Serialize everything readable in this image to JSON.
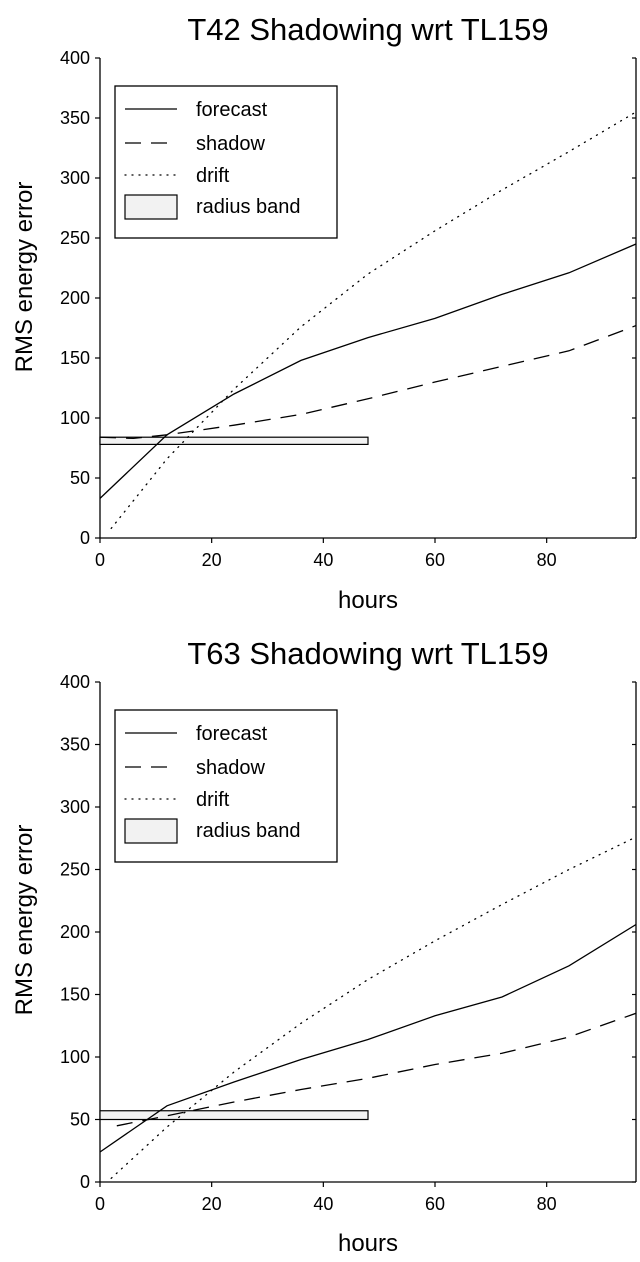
{
  "chart_data": [
    {
      "type": "line",
      "title": "T42 Shadowing wrt TL159",
      "xlabel": "hours",
      "ylabel": "RMS energy error",
      "xlim": [
        0,
        96
      ],
      "ylim": [
        0,
        400
      ],
      "xticks": [
        0,
        20,
        40,
        60,
        80
      ],
      "yticks": [
        0,
        50,
        100,
        150,
        200,
        250,
        300,
        350,
        400
      ],
      "legend_position": "top-left",
      "series": [
        {
          "name": "forecast",
          "style": "solid",
          "x": [
            0,
            12,
            24,
            36,
            48,
            60,
            72,
            84,
            96
          ],
          "y": [
            33,
            86,
            120,
            148,
            167,
            183,
            203,
            221,
            245
          ]
        },
        {
          "name": "shadow",
          "style": "dashed",
          "x": [
            0,
            6,
            12,
            24,
            36,
            48,
            60,
            72,
            84,
            96
          ],
          "y": [
            84,
            83,
            86,
            94,
            103,
            116,
            130,
            143,
            156,
            177
          ]
        },
        {
          "name": "drift",
          "style": "dotted",
          "x": [
            2,
            12,
            24,
            36,
            48,
            60,
            72,
            84,
            96
          ],
          "y": [
            8,
            66,
            124,
            176,
            220,
            256,
            290,
            322,
            355
          ]
        }
      ],
      "radius_band": {
        "name": "radius band",
        "x": [
          0,
          48
        ],
        "y": [
          78,
          84
        ]
      }
    },
    {
      "type": "line",
      "title": "T63 Shadowing wrt TL159",
      "xlabel": "hours",
      "ylabel": "RMS energy error",
      "xlim": [
        0,
        96
      ],
      "ylim": [
        0,
        400
      ],
      "xticks": [
        0,
        20,
        40,
        60,
        80
      ],
      "yticks": [
        0,
        50,
        100,
        150,
        200,
        250,
        300,
        350,
        400
      ],
      "legend_position": "top-left",
      "series": [
        {
          "name": "forecast",
          "style": "solid",
          "x": [
            0,
            12,
            24,
            36,
            48,
            60,
            72,
            84,
            96
          ],
          "y": [
            24,
            61,
            80,
            98,
            114,
            133,
            148,
            173,
            206
          ]
        },
        {
          "name": "shadow",
          "style": "dashed",
          "x": [
            3,
            12,
            24,
            36,
            48,
            60,
            72,
            84,
            96
          ],
          "y": [
            45,
            53,
            64,
            74,
            83,
            94,
            103,
            116,
            135
          ]
        },
        {
          "name": "drift",
          "style": "dotted",
          "x": [
            2,
            12,
            24,
            36,
            48,
            60,
            72,
            84,
            96
          ],
          "y": [
            3,
            44,
            88,
            127,
            162,
            193,
            222,
            250,
            276
          ]
        }
      ],
      "radius_band": {
        "name": "radius band",
        "x": [
          0,
          48
        ],
        "y": [
          50,
          57
        ]
      }
    }
  ]
}
